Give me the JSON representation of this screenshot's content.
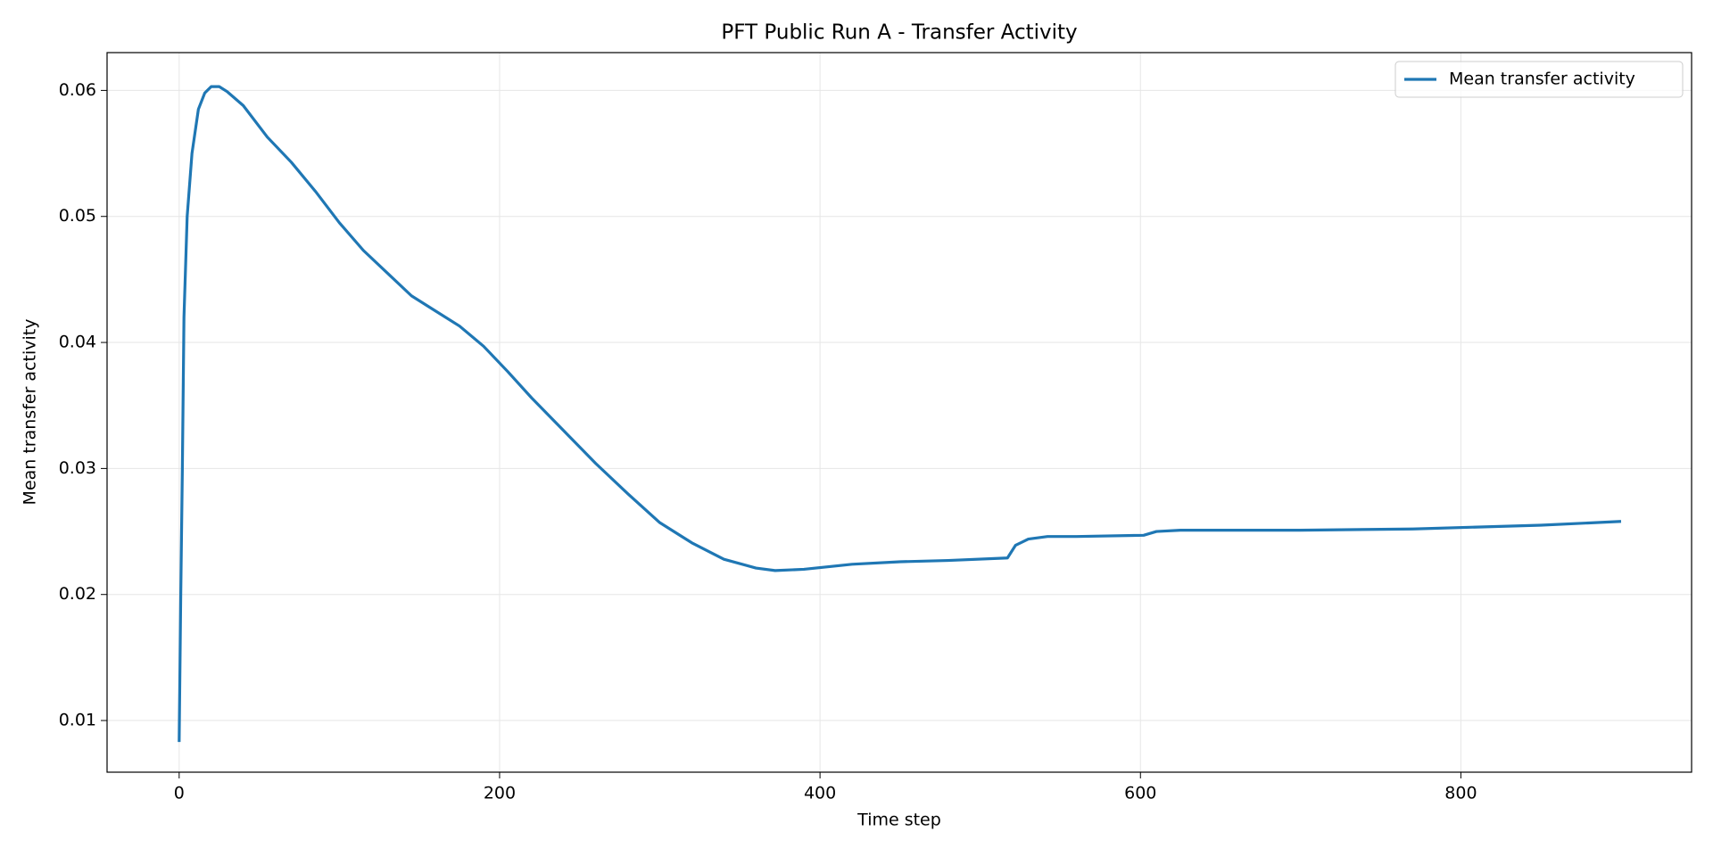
{
  "chart_data": {
    "type": "line",
    "title": "PFT Public Run A - Transfer Activity",
    "x_label": "Time step",
    "y_label": "Mean transfer activity",
    "x": [
      0,
      1,
      2,
      3,
      5,
      8,
      12,
      16,
      20,
      25,
      30,
      40,
      55,
      70,
      85,
      100,
      115,
      130,
      145,
      160,
      175,
      190,
      205,
      220,
      240,
      260,
      280,
      300,
      320,
      340,
      360,
      372,
      390,
      420,
      450,
      480,
      517,
      522,
      530,
      542,
      560,
      602,
      610,
      625,
      700,
      770,
      850,
      900
    ],
    "series": [
      {
        "name": "Mean transfer activity",
        "color": "#1f77b4",
        "values": [
          0.0083,
          0.02,
          0.03,
          0.042,
          0.05,
          0.055,
          0.0585,
          0.0598,
          0.0603,
          0.0603,
          0.0599,
          0.0588,
          0.0563,
          0.0543,
          0.052,
          0.0495,
          0.0473,
          0.0455,
          0.0437,
          0.0425,
          0.0413,
          0.0397,
          0.0377,
          0.0356,
          0.033,
          0.0304,
          0.028,
          0.0257,
          0.0241,
          0.0228,
          0.0221,
          0.0219,
          0.022,
          0.0224,
          0.0226,
          0.0227,
          0.0229,
          0.0239,
          0.0244,
          0.0246,
          0.0246,
          0.0247,
          0.025,
          0.0251,
          0.0251,
          0.0252,
          0.0255,
          0.0258
        ]
      }
    ],
    "xlim": [
      -45,
      944
    ],
    "ylim": [
      0.0059,
      0.063
    ],
    "xticks": [
      0,
      200,
      400,
      600,
      800
    ],
    "yticks": [
      0.01,
      0.02,
      0.03,
      0.04,
      0.05,
      0.06
    ],
    "grid": true,
    "legend": "upper right"
  }
}
